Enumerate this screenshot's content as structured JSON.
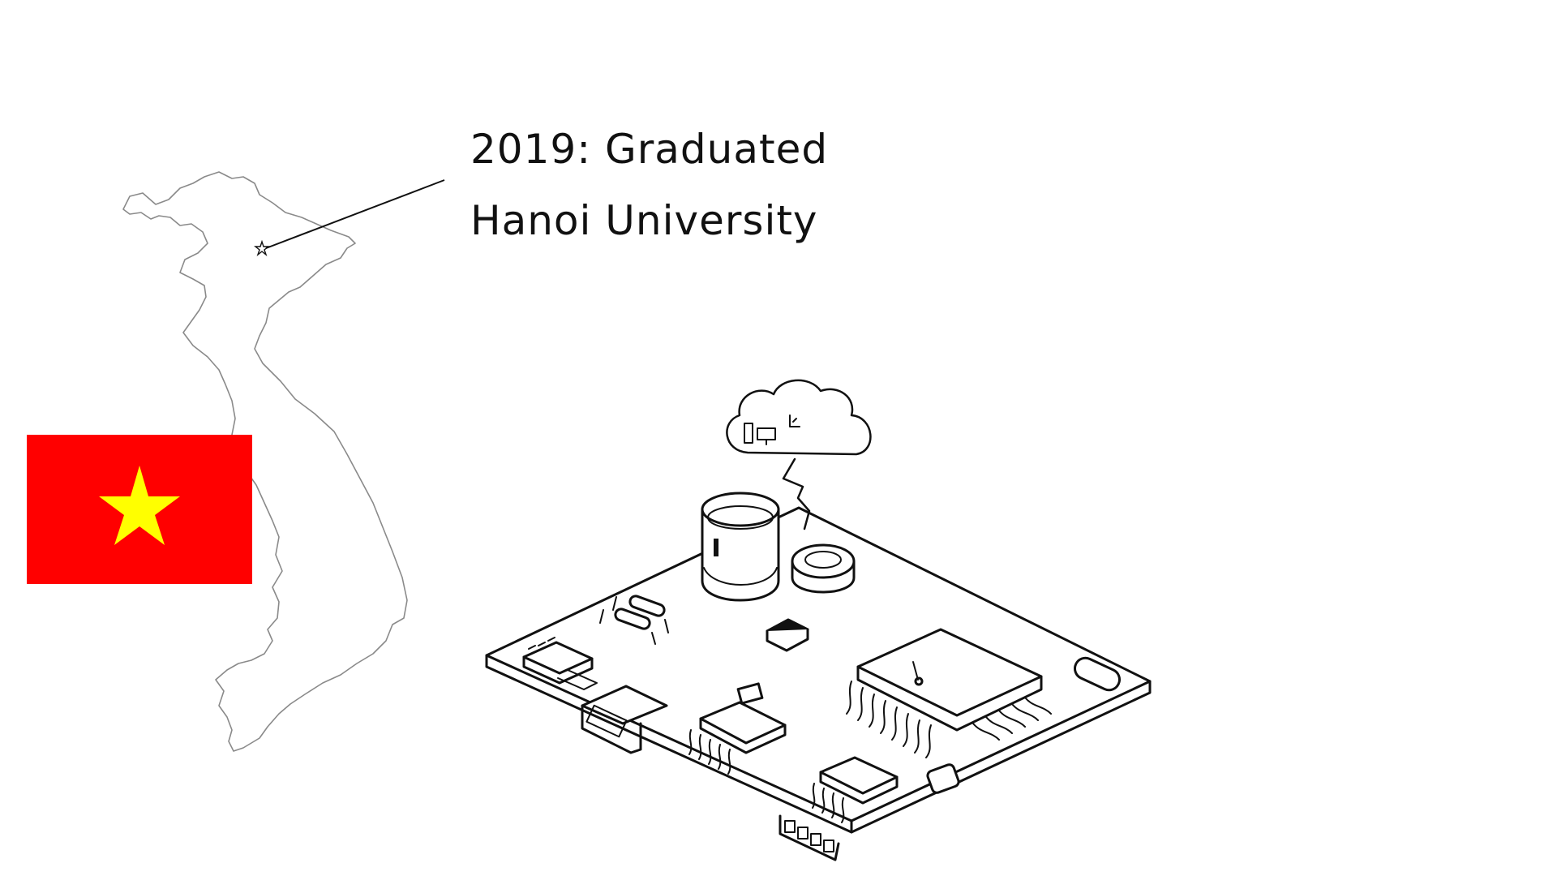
{
  "caption": {
    "line1": "2019: Graduated",
    "line2": "Hanoi University"
  },
  "flag": {
    "background_color": "#ff0000",
    "star_color": "#ffff00"
  },
  "map": {
    "outline_color": "#8a8a8a",
    "marker_icon": "star-icon"
  },
  "illustration": {
    "subject": "circuit-board",
    "cloud_icons": [
      "computer-icon",
      "chart-icon"
    ]
  }
}
